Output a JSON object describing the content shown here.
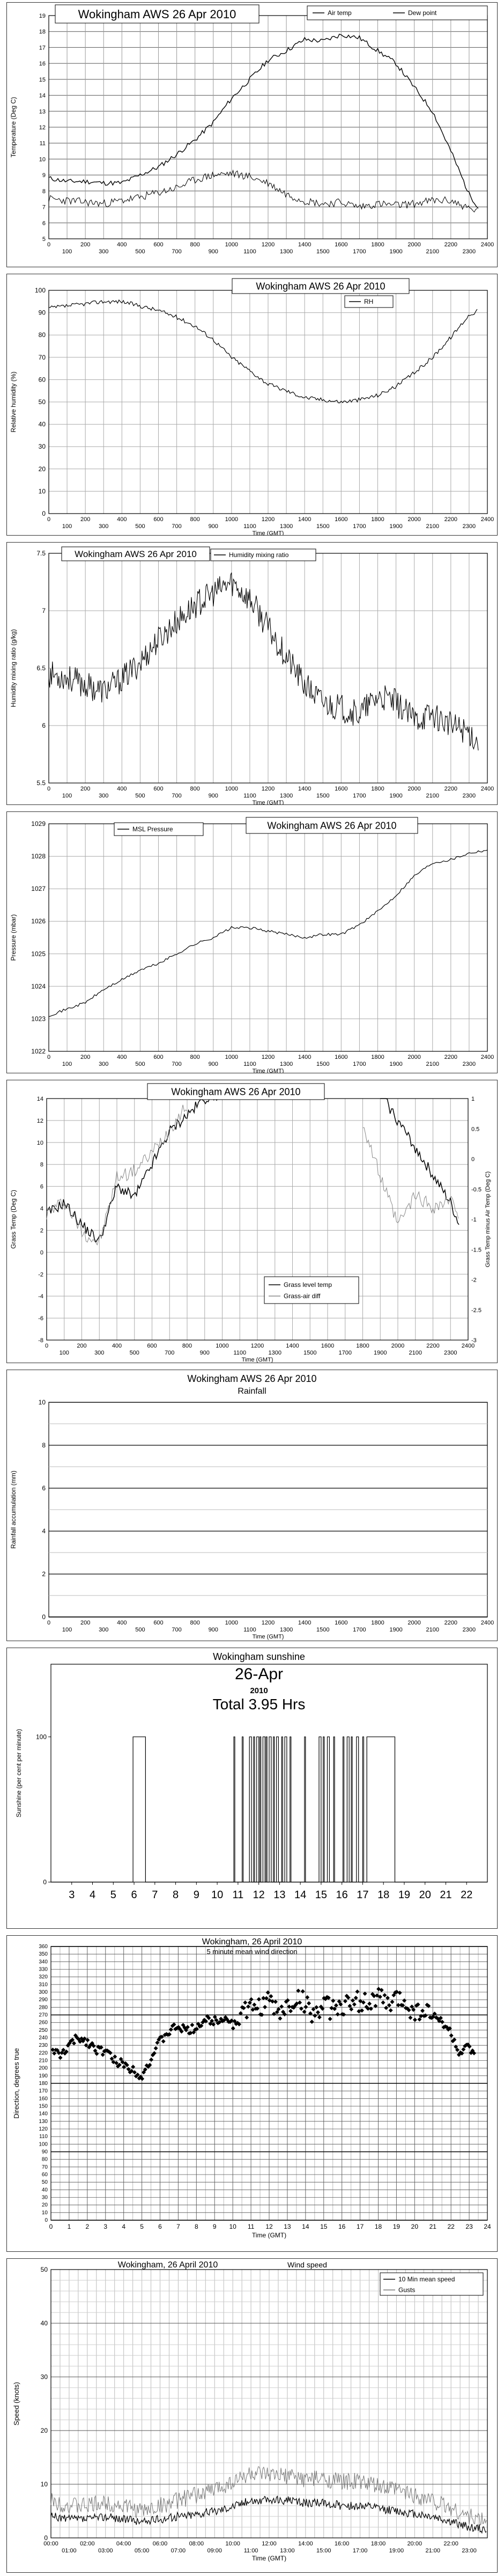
{
  "chart_data": [
    {
      "id": "temp",
      "type": "line",
      "title": "Wokingham AWS 26 Apr 2010",
      "ylabel": "Temperature (Deg C)",
      "xlabel": "",
      "ylim": [
        5,
        19
      ],
      "yticks": [
        5,
        6,
        7,
        8,
        9,
        10,
        11,
        12,
        13,
        14,
        15,
        16,
        17,
        18,
        19
      ],
      "xlim": [
        0,
        2400
      ],
      "xticks_top": [
        0,
        200,
        400,
        600,
        800,
        1000,
        1200,
        1400,
        1600,
        1800,
        2000,
        2200,
        2400
      ],
      "xticks_bottom": [
        100,
        300,
        500,
        700,
        900,
        1100,
        1300,
        1500,
        1700,
        1900,
        2100,
        2300
      ],
      "legend": [
        "Air temp",
        "Dew point"
      ],
      "series": [
        {
          "name": "Air temp",
          "x": [
            0,
            100,
            200,
            300,
            400,
            500,
            600,
            700,
            800,
            900,
            1000,
            1100,
            1200,
            1300,
            1400,
            1500,
            1600,
            1700,
            1800,
            1900,
            2000,
            2100,
            2200,
            2300,
            2350
          ],
          "values": [
            8.8,
            8.6,
            8.6,
            8.5,
            8.5,
            9.0,
            9.5,
            10.3,
            11.2,
            12.3,
            13.8,
            15.0,
            16.2,
            16.8,
            17.5,
            17.4,
            17.8,
            17.6,
            16.8,
            16.0,
            14.5,
            13.0,
            10.5,
            7.8,
            7.0
          ]
        },
        {
          "name": "Dew point",
          "x": [
            0,
            100,
            200,
            300,
            400,
            500,
            600,
            700,
            800,
            900,
            1000,
            1100,
            1200,
            1300,
            1400,
            1500,
            1600,
            1700,
            1800,
            1900,
            2000,
            2100,
            2200,
            2300,
            2350
          ],
          "values": [
            7.5,
            7.4,
            7.3,
            7.2,
            7.4,
            7.6,
            7.9,
            8.2,
            8.7,
            9.0,
            9.1,
            8.9,
            8.5,
            7.8,
            7.4,
            7.2,
            7.3,
            7.0,
            7.2,
            7.1,
            7.2,
            7.4,
            7.4,
            6.9,
            6.7
          ]
        }
      ]
    },
    {
      "id": "rh",
      "type": "line",
      "title": "Wokingham AWS 26 Apr 2010",
      "ylabel": "Relative humidity (%)",
      "xlabel": "Time (GMT)",
      "ylim": [
        0,
        100
      ],
      "yticks": [
        0,
        10,
        20,
        30,
        40,
        50,
        60,
        70,
        80,
        90,
        100
      ],
      "xlim": [
        0,
        2400
      ],
      "xticks_top": [
        0,
        200,
        400,
        600,
        800,
        1000,
        1200,
        1400,
        1600,
        1800,
        2000,
        2200,
        2400
      ],
      "xticks_bottom": [
        100,
        300,
        500,
        700,
        900,
        1100,
        1300,
        1500,
        1700,
        1900,
        2100,
        2300
      ],
      "legend": [
        "RH"
      ],
      "series": [
        {
          "name": "RH",
          "x": [
            0,
            100,
            200,
            300,
            400,
            500,
            600,
            700,
            800,
            900,
            1000,
            1100,
            1200,
            1300,
            1400,
            1500,
            1600,
            1700,
            1800,
            1900,
            2000,
            2100,
            2200,
            2300,
            2350
          ],
          "values": [
            92,
            93,
            94,
            95,
            95,
            93,
            91,
            88,
            84,
            78,
            70,
            64,
            58,
            55,
            52,
            51,
            50,
            51,
            53,
            57,
            63,
            70,
            79,
            89,
            91
          ]
        }
      ]
    },
    {
      "id": "mix",
      "type": "line",
      "title": "Wokingham AWS 26 Apr 2010",
      "ylabel": "Humidity mixing ratio (g/kg)",
      "xlabel": "Time (GMT)",
      "ylim": [
        5.5,
        7.5
      ],
      "yticks": [
        5.5,
        6,
        6.5,
        7,
        7.5
      ],
      "xlim": [
        0,
        2400
      ],
      "xticks_top": [
        0,
        200,
        400,
        600,
        800,
        1000,
        1200,
        1400,
        1600,
        1800,
        2000,
        2200,
        2400
      ],
      "xticks_bottom": [
        100,
        300,
        500,
        700,
        900,
        1100,
        1300,
        1500,
        1700,
        1900,
        2100,
        2300
      ],
      "legend": [
        "Humidity mixing ratio"
      ],
      "series": [
        {
          "name": "Humidity mixing ratio",
          "x": [
            0,
            100,
            200,
            300,
            400,
            500,
            600,
            700,
            800,
            900,
            1000,
            1100,
            1200,
            1300,
            1400,
            1500,
            1600,
            1700,
            1800,
            1900,
            2000,
            2100,
            2200,
            2300,
            2350
          ],
          "values": [
            6.45,
            6.42,
            6.35,
            6.3,
            6.4,
            6.55,
            6.75,
            6.9,
            7.05,
            7.15,
            7.25,
            7.1,
            6.85,
            6.6,
            6.35,
            6.2,
            6.15,
            6.1,
            6.25,
            6.2,
            6.05,
            6.1,
            6.0,
            5.95,
            5.85
          ]
        }
      ]
    },
    {
      "id": "pres",
      "type": "line",
      "title": "Wokingham AWS 26 Apr 2010",
      "ylabel": "Pressure (mbar)",
      "xlabel": "Time (GMT)",
      "ylim": [
        1022,
        1029
      ],
      "yticks": [
        1022,
        1023,
        1024,
        1025,
        1026,
        1027,
        1028,
        1029
      ],
      "xlim": [
        0,
        2400
      ],
      "xticks_top": [
        0,
        200,
        400,
        600,
        800,
        1000,
        1200,
        1400,
        1600,
        1800,
        2000,
        2200,
        2400
      ],
      "xticks_bottom": [
        100,
        300,
        500,
        700,
        900,
        1100,
        1300,
        1500,
        1700,
        1900,
        2100,
        2300
      ],
      "legend": [
        "MSL Pressure"
      ],
      "series": [
        {
          "name": "MSL Pressure",
          "x": [
            0,
            100,
            200,
            300,
            400,
            500,
            600,
            700,
            800,
            900,
            1000,
            1100,
            1200,
            1300,
            1400,
            1500,
            1600,
            1700,
            1800,
            1900,
            2000,
            2100,
            2200,
            2300,
            2400
          ],
          "values": [
            1023.1,
            1023.3,
            1023.5,
            1023.9,
            1024.2,
            1024.5,
            1024.7,
            1025.0,
            1025.3,
            1025.5,
            1025.8,
            1025.8,
            1025.7,
            1025.6,
            1025.5,
            1025.6,
            1025.6,
            1025.9,
            1026.3,
            1026.8,
            1027.4,
            1027.8,
            1027.9,
            1028.1,
            1028.2
          ]
        }
      ]
    },
    {
      "id": "grass",
      "type": "line",
      "title": "Wokingham AWS 26 Apr 2010",
      "ylabel": "Grass Temp (Deg C)",
      "ylabel_right": "Grass Temp minus Air Temp (Deg C)",
      "xlabel": "Time (GMT)",
      "ylim": [
        -8,
        14
      ],
      "yticks": [
        -8,
        -6,
        -4,
        -2,
        0,
        2,
        4,
        6,
        8,
        10,
        12,
        14
      ],
      "ylim_right": [
        -3,
        1
      ],
      "yticks_right": [
        -3,
        -2.5,
        -2,
        -1.5,
        -1,
        -0.5,
        0,
        0.5,
        1
      ],
      "xlim": [
        0,
        2400
      ],
      "xticks_top": [
        0,
        200,
        400,
        600,
        800,
        1000,
        1200,
        1400,
        1600,
        1800,
        2000,
        2200,
        2400
      ],
      "xticks_bottom": [
        100,
        300,
        500,
        700,
        900,
        1100,
        1300,
        1500,
        1700,
        1900,
        2100,
        2300
      ],
      "legend": [
        "Grass level temp",
        "Grass-air diff"
      ],
      "series": [
        {
          "name": "Grass level temp",
          "x": [
            0,
            100,
            200,
            300,
            400,
            500,
            600,
            700,
            800,
            900,
            1000,
            1100,
            1900,
            2000,
            2100,
            2200,
            2300,
            2350
          ],
          "values": [
            3.5,
            4.5,
            2.5,
            1.0,
            6.0,
            5.0,
            8.0,
            11.0,
            12.5,
            14.0,
            14.5,
            14.5,
            14.5,
            12.0,
            9.5,
            7.0,
            4.5,
            2.5
          ]
        },
        {
          "name": "Grass-air diff",
          "x": [
            0,
            100,
            200,
            300,
            400,
            500,
            600,
            700,
            800,
            1800,
            1900,
            2000,
            2100,
            2200,
            2300,
            2350
          ],
          "values": [
            -0.9,
            -0.7,
            -1.2,
            -1.4,
            -0.3,
            -0.2,
            0.1,
            0.5,
            0.9,
            0.6,
            -0.3,
            -1.1,
            -0.6,
            -0.8,
            -0.7,
            -0.9
          ]
        }
      ]
    },
    {
      "id": "rain",
      "type": "line",
      "title": "Wokingham AWS 26 Apr 2010",
      "subtitle": "Rainfall",
      "ylabel": "Rainfall accumulation (mm)",
      "xlabel": "Time (GMT)",
      "ylim": [
        0,
        10
      ],
      "yticks": [
        0,
        2,
        4,
        6,
        8,
        10
      ],
      "xlim": [
        0,
        2400
      ],
      "xticks_top": [
        0,
        200,
        400,
        600,
        800,
        1000,
        1200,
        1400,
        1600,
        1800,
        2000,
        2200,
        2400
      ],
      "xticks_bottom": [
        100,
        300,
        500,
        700,
        900,
        1100,
        1300,
        1500,
        1700,
        1900,
        2100,
        2300
      ],
      "series": [
        {
          "name": "",
          "x": [
            0,
            2400
          ],
          "values": [
            0,
            0
          ]
        }
      ]
    },
    {
      "id": "sun",
      "type": "area",
      "title": "Wokingham sunshine",
      "date": "26-Apr",
      "year": "2010",
      "total": "Total 3.95 Hrs",
      "ylabel": "Sunshine (per cent per minute)",
      "xlabel": "",
      "ylim": [
        0,
        150
      ],
      "yticks": [
        0,
        100
      ],
      "xlim": [
        2,
        23
      ],
      "xticks": [
        3,
        4,
        5,
        6,
        7,
        8,
        9,
        10,
        11,
        12,
        13,
        14,
        15,
        16,
        17,
        18,
        19,
        20,
        21,
        22
      ],
      "intervals": [
        [
          5.95,
          6.55
        ],
        [
          10.8,
          10.85
        ],
        [
          11.2,
          11.25
        ],
        [
          11.55,
          11.65
        ],
        [
          11.75,
          11.8
        ],
        [
          11.9,
          12.0
        ],
        [
          12.05,
          12.1
        ],
        [
          12.2,
          12.3
        ],
        [
          12.35,
          12.4
        ],
        [
          12.5,
          12.6
        ],
        [
          12.7,
          12.75
        ],
        [
          12.85,
          12.95
        ],
        [
          13.1,
          13.15
        ],
        [
          13.25,
          13.35
        ],
        [
          13.5,
          13.55
        ],
        [
          14.2,
          14.25
        ],
        [
          14.9,
          15.0
        ],
        [
          15.1,
          15.15
        ],
        [
          15.3,
          15.4
        ],
        [
          15.6,
          15.65
        ],
        [
          16.05,
          16.1
        ],
        [
          16.25,
          16.35
        ],
        [
          16.45,
          16.5
        ],
        [
          16.7,
          16.8
        ],
        [
          17.0,
          17.05
        ],
        [
          17.2,
          18.55
        ]
      ]
    },
    {
      "id": "dir",
      "type": "scatter",
      "title": "Wokingham,  26 April 2010",
      "subtitle": "5 minute mean wind direction",
      "ylabel": "Direction, degrees true",
      "xlabel": "Time (GMT)",
      "ylim": [
        0,
        360
      ],
      "yticks": [
        0,
        10,
        20,
        30,
        40,
        50,
        60,
        70,
        80,
        90,
        100,
        110,
        120,
        130,
        140,
        150,
        160,
        170,
        180,
        190,
        200,
        210,
        220,
        230,
        240,
        250,
        260,
        270,
        280,
        290,
        300,
        310,
        320,
        330,
        340,
        350,
        360
      ],
      "xlim": [
        0,
        24
      ],
      "xticks": [
        0,
        1,
        2,
        3,
        4,
        5,
        6,
        7,
        8,
        9,
        10,
        11,
        12,
        13,
        14,
        15,
        16,
        17,
        18,
        19,
        20,
        21,
        22,
        23,
        24
      ],
      "x": [
        0.1,
        0.5,
        1.0,
        1.5,
        2.0,
        2.5,
        3.0,
        3.5,
        4.0,
        4.5,
        5.0,
        5.5,
        6.0,
        6.5,
        7.0,
        7.5,
        8.0,
        8.5,
        9.0,
        9.5,
        10.0,
        10.5,
        11.0,
        11.5,
        12.0,
        12.5,
        13.0,
        13.5,
        14.0,
        14.5,
        15.0,
        15.5,
        16.0,
        16.5,
        17.0,
        17.5,
        18.0,
        18.5,
        19.0,
        19.5,
        20.0,
        20.5,
        21.0,
        21.5,
        22.0,
        22.5,
        23.0,
        23.3
      ],
      "values": [
        225,
        215,
        230,
        240,
        235,
        225,
        222,
        210,
        205,
        198,
        190,
        212,
        235,
        248,
        255,
        248,
        255,
        263,
        262,
        268,
        258,
        272,
        278,
        282,
        288,
        272,
        280,
        292,
        285,
        270,
        282,
        276,
        285,
        280,
        290,
        285,
        295,
        282,
        290,
        288,
        272,
        278,
        268,
        262,
        245,
        218,
        228,
        212
      ]
    },
    {
      "id": "speed",
      "type": "line",
      "title": "Wokingham,  26 April 2010",
      "subtitle": "Wind speed",
      "ylabel": "Speed (knots)",
      "xlabel": "Time (GMT)",
      "ylim": [
        0,
        50
      ],
      "yticks": [
        0,
        10,
        20,
        30,
        40,
        50
      ],
      "xlim": [
        0,
        24
      ],
      "xticks_top": [
        "00:00",
        "02:00",
        "04:00",
        "06:00",
        "08:00",
        "10:00",
        "12:00",
        "14:00",
        "16:00",
        "18:00",
        "20:00",
        "22:00"
      ],
      "xticks_bottom": [
        "01:00",
        "03:00",
        "05:00",
        "07:00",
        "09:00",
        "11:00",
        "13:00",
        "15:00",
        "17:00",
        "19:00",
        "21:00",
        "23:00"
      ],
      "legend": [
        "10 Min mean speed",
        "Gusts"
      ],
      "series": [
        {
          "name": "10 Min mean speed",
          "x": [
            0,
            1,
            2,
            3,
            4,
            5,
            6,
            7,
            8,
            9,
            10,
            11,
            12,
            13,
            14,
            15,
            16,
            17,
            18,
            19,
            20,
            21,
            22,
            23,
            24
          ],
          "values": [
            4,
            3.5,
            3.5,
            4,
            3.5,
            3,
            3.5,
            4,
            4.5,
            5,
            6,
            7,
            7,
            7,
            6.5,
            6.5,
            6,
            6,
            5.5,
            5,
            4.5,
            4,
            3,
            2,
            1.5
          ]
        },
        {
          "name": "Gusts",
          "x": [
            0,
            1,
            2,
            3,
            4,
            5,
            6,
            7,
            8,
            9,
            10,
            11,
            12,
            13,
            14,
            15,
            16,
            17,
            18,
            19,
            20,
            21,
            22,
            23,
            24
          ],
          "values": [
            7,
            6,
            6,
            6.5,
            6,
            5,
            6,
            7,
            8,
            9,
            10.5,
            12,
            11.5,
            11.5,
            11,
            11,
            10.5,
            10.5,
            9.5,
            9,
            8,
            7,
            5.5,
            4,
            3
          ]
        }
      ]
    }
  ]
}
